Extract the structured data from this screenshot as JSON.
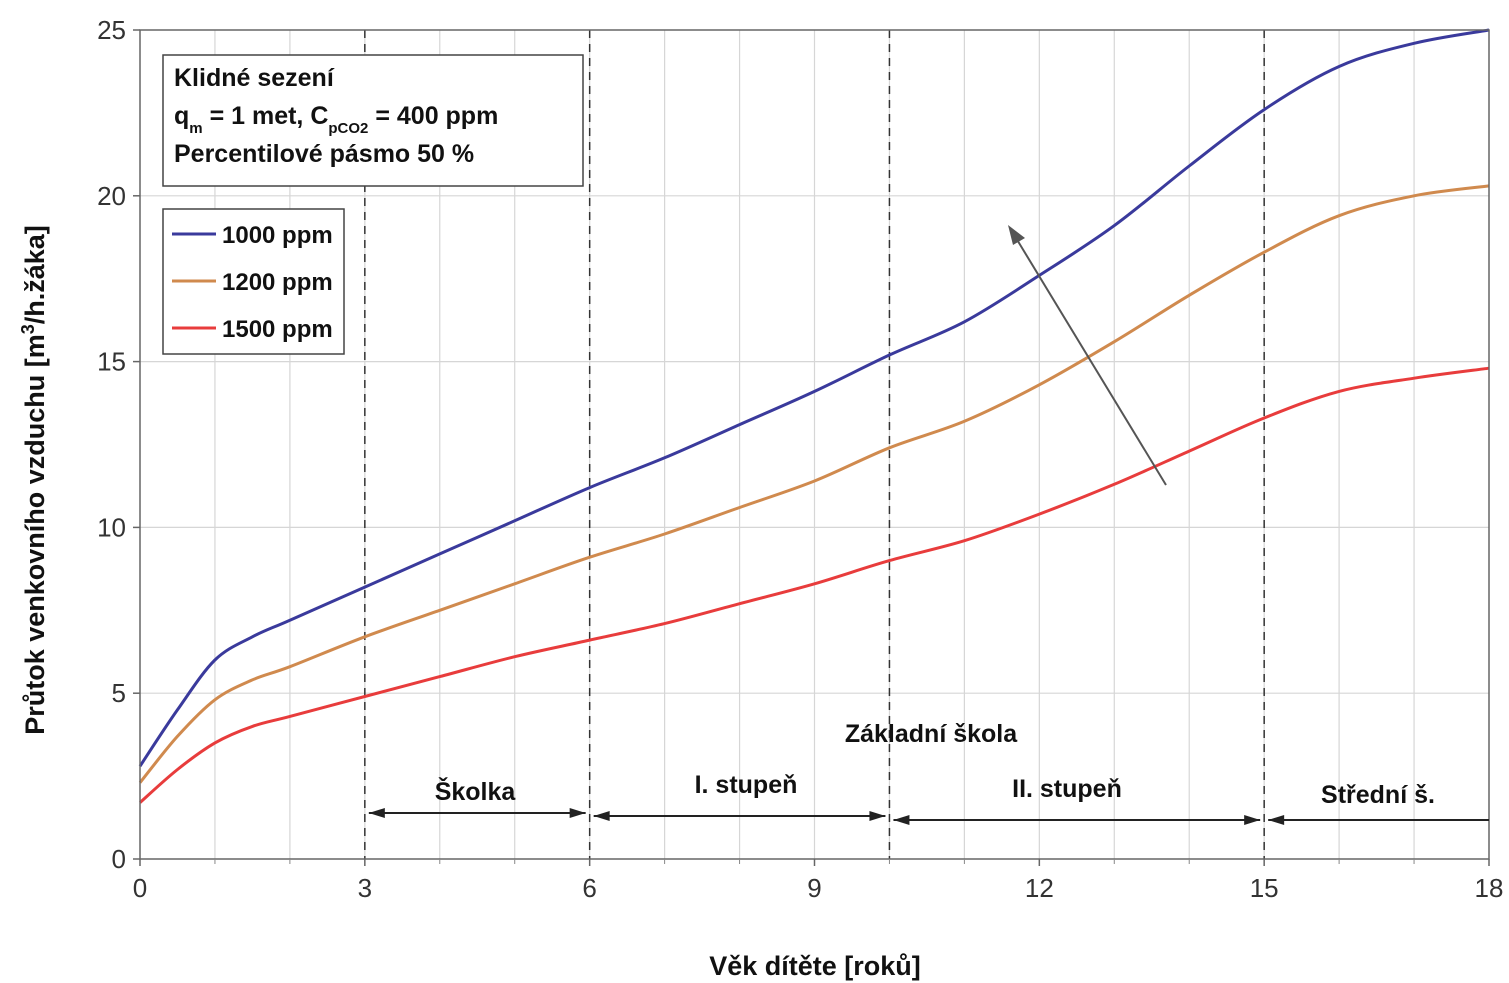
{
  "chart_data": {
    "type": "line",
    "xlabel": "Věk dítěte [roků]",
    "ylabel_main": "Průtok venkovního vzduchu [m",
    "ylabel_sup": "3",
    "ylabel_tail": "/h.žáka]",
    "xlim": [
      0,
      18
    ],
    "ylim": [
      0,
      25
    ],
    "x_ticks": [
      0,
      3,
      6,
      9,
      12,
      15,
      18
    ],
    "y_ticks": [
      0,
      5,
      10,
      15,
      20,
      25
    ],
    "grid": true,
    "info_box": {
      "line1": "Klidné sezení",
      "line2_a": "q",
      "line2_a_sub": "m",
      "line2_b": " = 1 met, C",
      "line2_b_sub": "pCO2",
      "line2_c": " = 400 ppm",
      "line3": "Percentilové pásmo 50 %"
    },
    "legend_position": "top-left",
    "series": [
      {
        "name": "1000 ppm",
        "color": "#3a3a9c",
        "x": [
          0,
          0.5,
          1,
          1.5,
          2,
          3,
          4,
          5,
          6,
          7,
          8,
          9,
          10,
          11,
          12,
          13,
          14,
          15,
          16,
          17,
          18
        ],
        "values": [
          2.8,
          4.5,
          6.0,
          6.7,
          7.2,
          8.2,
          9.2,
          10.2,
          11.2,
          12.1,
          13.1,
          14.1,
          15.2,
          16.2,
          17.6,
          19.1,
          20.9,
          22.6,
          23.9,
          24.6,
          25.0
        ]
      },
      {
        "name": "1200 ppm",
        "color": "#d08a4e",
        "x": [
          0,
          0.5,
          1,
          1.5,
          2,
          3,
          4,
          5,
          6,
          7,
          8,
          9,
          10,
          11,
          12,
          13,
          14,
          15,
          16,
          17,
          18
        ],
        "values": [
          2.3,
          3.7,
          4.8,
          5.4,
          5.8,
          6.7,
          7.5,
          8.3,
          9.1,
          9.8,
          10.6,
          11.4,
          12.4,
          13.2,
          14.3,
          15.6,
          17.0,
          18.3,
          19.4,
          20.0,
          20.3
        ]
      },
      {
        "name": "1500 ppm",
        "color": "#e83c3c",
        "x": [
          0,
          0.5,
          1,
          1.5,
          2,
          3,
          4,
          5,
          6,
          7,
          8,
          9,
          10,
          11,
          12,
          13,
          14,
          15,
          16,
          17,
          18
        ],
        "values": [
          1.7,
          2.7,
          3.5,
          4.0,
          4.3,
          4.9,
          5.5,
          6.1,
          6.6,
          7.1,
          7.7,
          8.3,
          9.0,
          9.6,
          10.4,
          11.3,
          12.3,
          13.3,
          14.1,
          14.5,
          14.8
        ]
      }
    ],
    "stage_boundaries": [
      3,
      6,
      10,
      15
    ],
    "stages": {
      "group_label": "Základní škola",
      "skolka": "Školka",
      "stupen1": "I. stupeň",
      "stupen2": "II. stupeň",
      "stredni": "Střední š."
    }
  }
}
